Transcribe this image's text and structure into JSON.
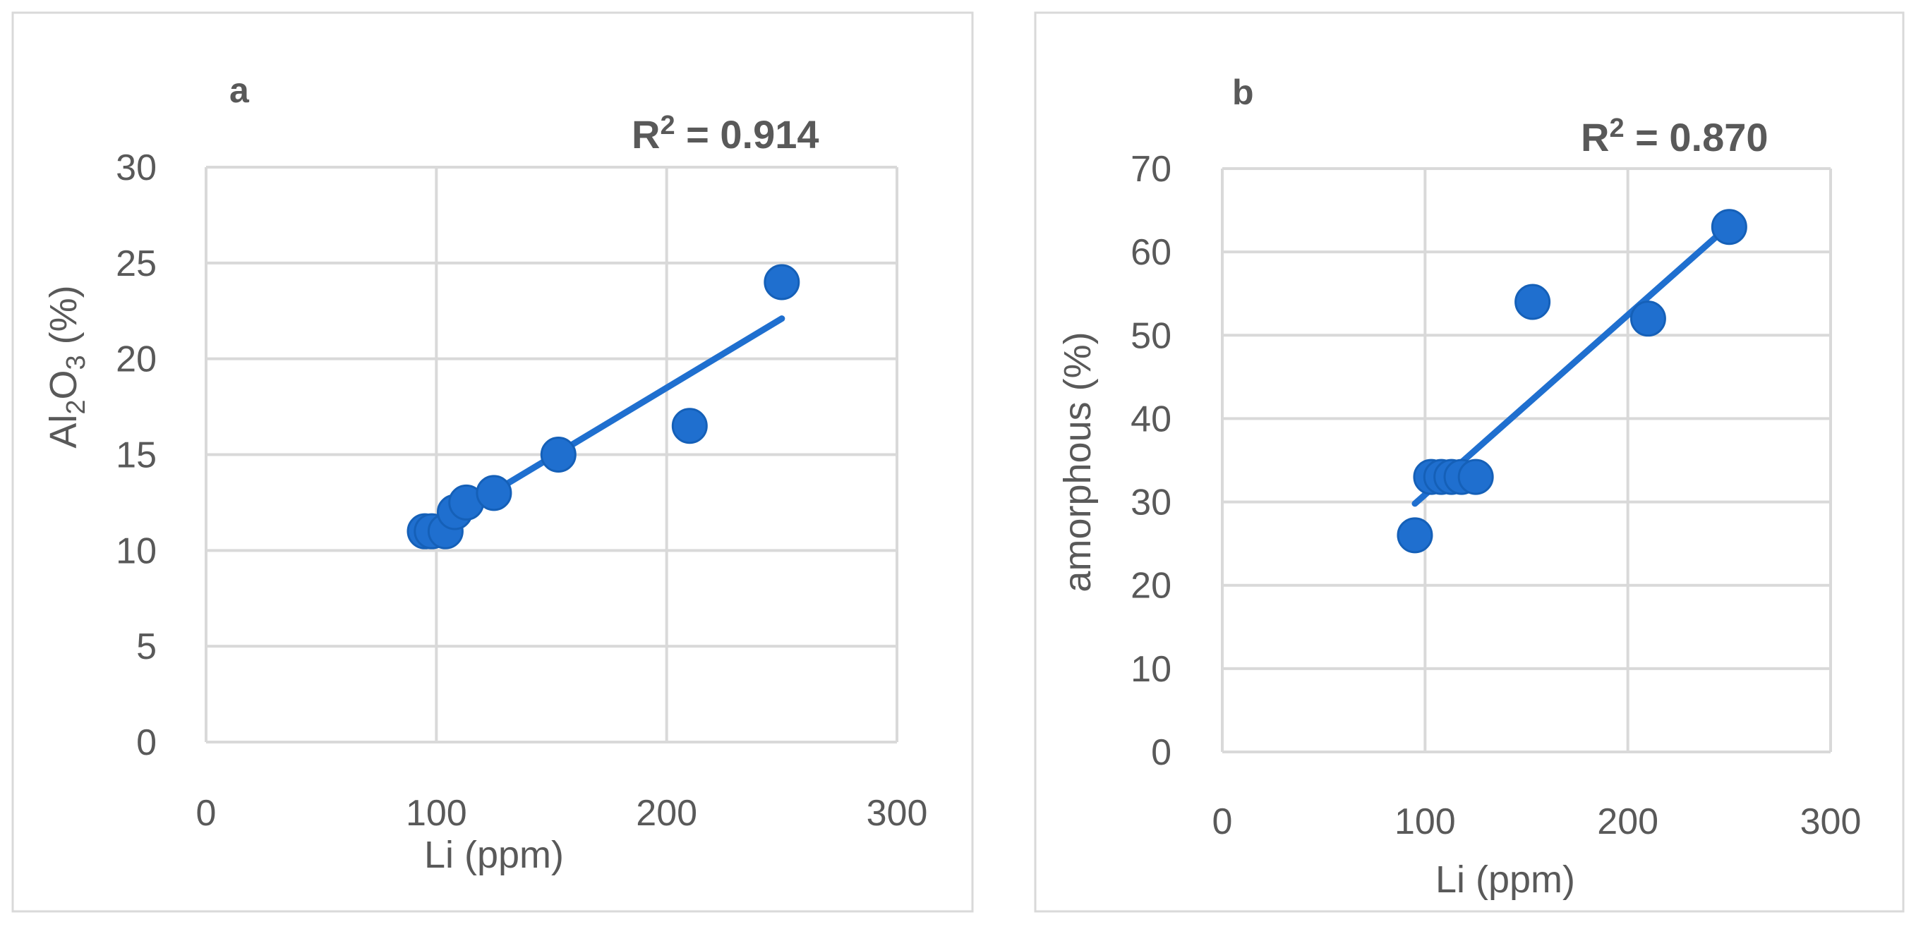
{
  "chart_data": [
    {
      "type": "scatter",
      "panel_label": "a",
      "r2_prefix": "R",
      "r2_exp": "2",
      "r2_suffix": " = 0.914",
      "ylabel_main": "Al",
      "ylabel_sub1": "2",
      "ylabel_mid": "O",
      "ylabel_sub2": "3",
      "ylabel_tail": " (%)",
      "xlabel": "Li (ppm)",
      "xlim": [
        0,
        300
      ],
      "ylim": [
        0,
        30
      ],
      "xticks": [
        "0",
        "100",
        "200",
        "300"
      ],
      "yticks": [
        "0",
        "5",
        "10",
        "15",
        "20",
        "25",
        "30"
      ],
      "grid": true,
      "points": [
        {
          "x": 95,
          "y": 11
        },
        {
          "x": 98,
          "y": 11
        },
        {
          "x": 104,
          "y": 11
        },
        {
          "x": 108,
          "y": 12
        },
        {
          "x": 113,
          "y": 12.5
        },
        {
          "x": 125,
          "y": 13
        },
        {
          "x": 153,
          "y": 15
        },
        {
          "x": 210,
          "y": 16.5
        },
        {
          "x": 250,
          "y": 24
        }
      ],
      "trendline": {
        "x": [
          95,
          250
        ],
        "y": [
          10.9,
          22.1
        ]
      },
      "color": "#1f6fcf"
    },
    {
      "type": "scatter",
      "panel_label": "b",
      "r2_prefix": "R",
      "r2_exp": "2",
      "r2_suffix": " = 0.870",
      "ylabel": "amorphous  (%)",
      "xlabel": "Li (ppm)",
      "xlim": [
        0,
        300
      ],
      "ylim": [
        0,
        70
      ],
      "xticks": [
        "0",
        "100",
        "200",
        "300"
      ],
      "yticks": [
        "0",
        "10",
        "20",
        "30",
        "40",
        "50",
        "60",
        "70"
      ],
      "grid": true,
      "points": [
        {
          "x": 95,
          "y": 26
        },
        {
          "x": 103,
          "y": 33
        },
        {
          "x": 108,
          "y": 33
        },
        {
          "x": 113,
          "y": 33
        },
        {
          "x": 118,
          "y": 33
        },
        {
          "x": 125,
          "y": 33
        },
        {
          "x": 153,
          "y": 54
        },
        {
          "x": 210,
          "y": 52
        },
        {
          "x": 250,
          "y": 63
        }
      ],
      "trendline": {
        "x": [
          95,
          250
        ],
        "y": [
          29.8,
          63.2
        ]
      },
      "color": "#1f6fcf"
    }
  ]
}
